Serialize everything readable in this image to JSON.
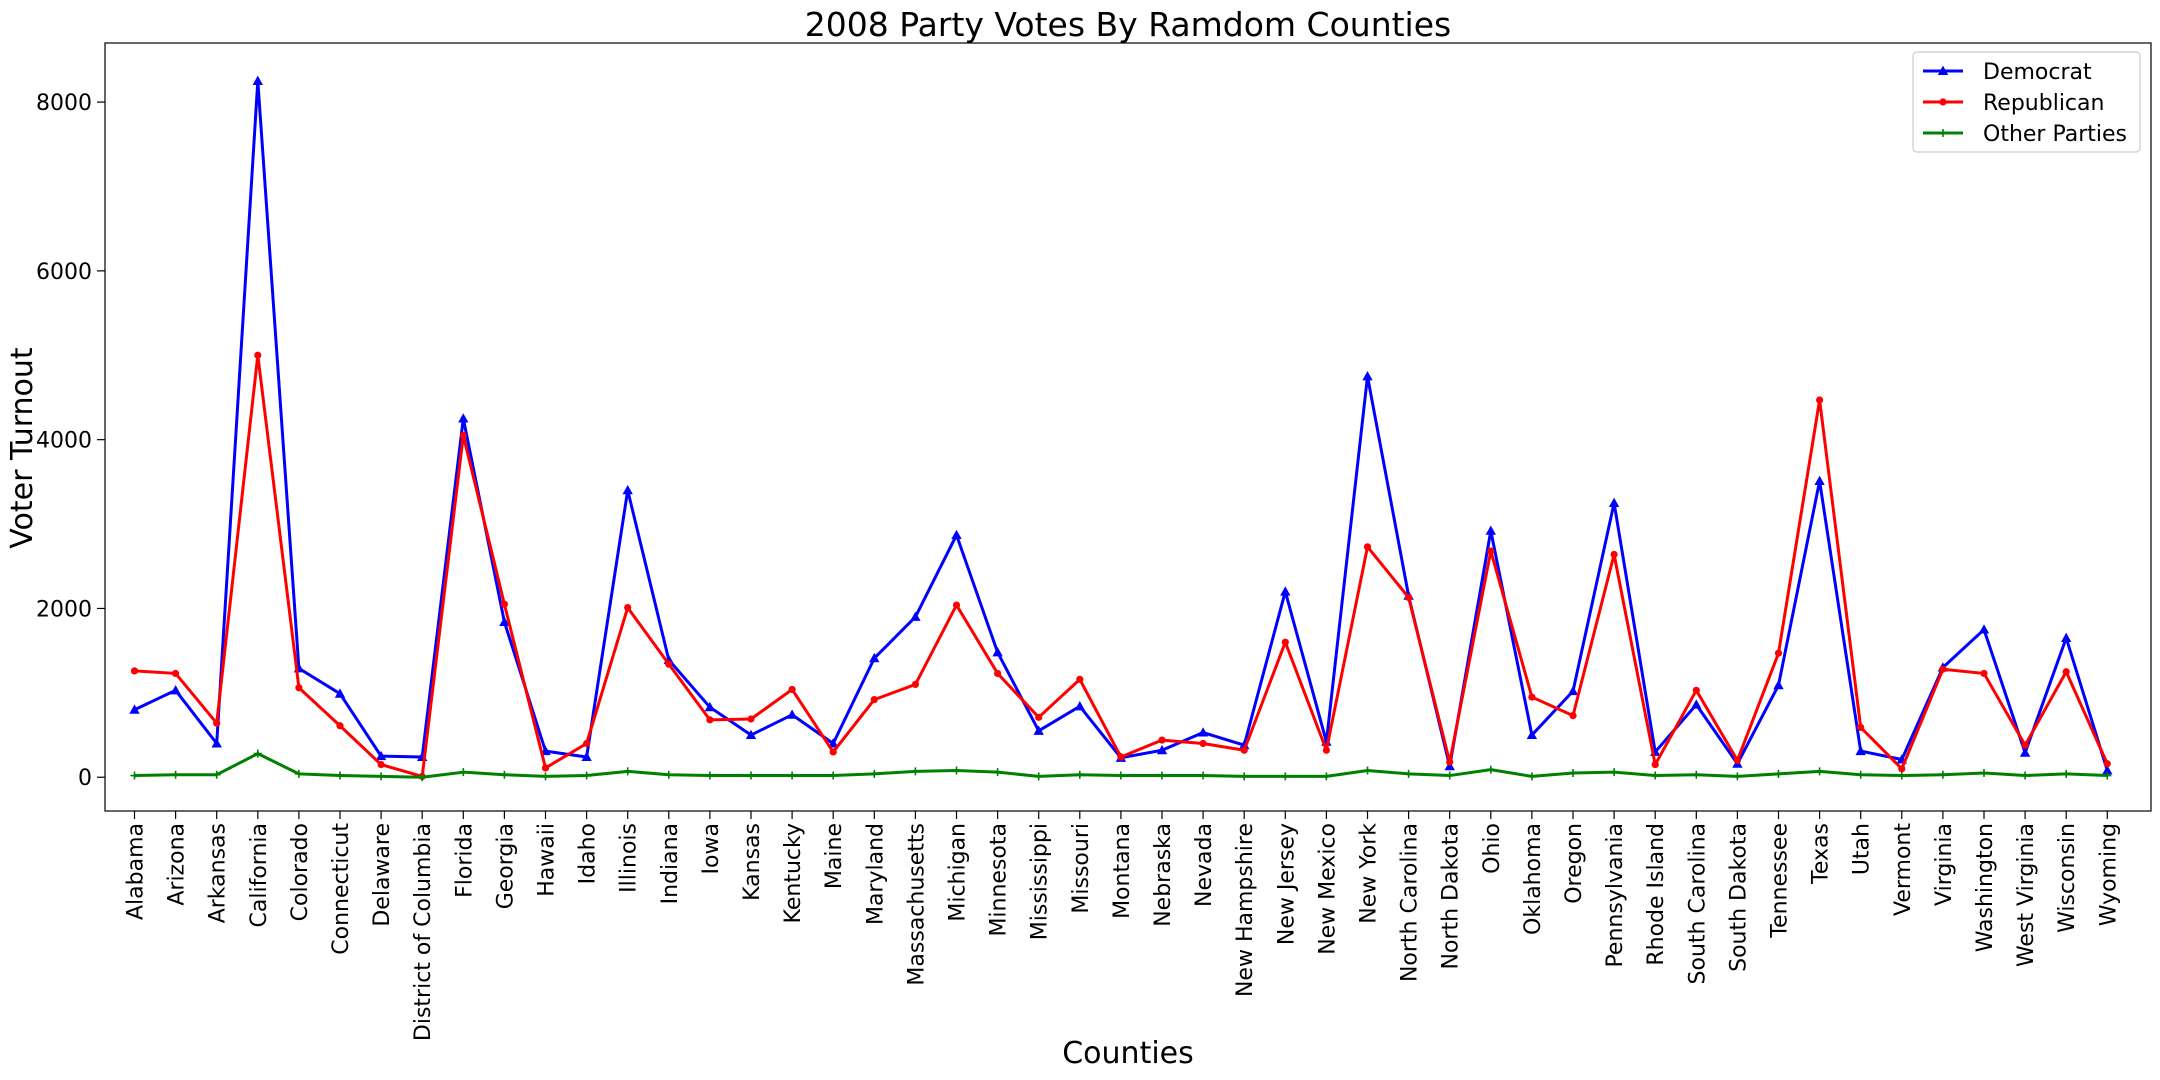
{
  "chart_data": {
    "type": "line",
    "title": "2008 Party Votes By Ramdom Counties",
    "xlabel": "Counties",
    "ylabel": "Voter Turnout",
    "ylim": [
      -400,
      8700
    ],
    "yticks": [
      0,
      2000,
      4000,
      6000,
      8000
    ],
    "grid": false,
    "legend_position": "top-right",
    "categories": [
      "Alabama",
      "Arizona",
      "Arkansas",
      "California",
      "Colorado",
      "Connecticut",
      "Delaware",
      "District of Columbia",
      "Florida",
      "Georgia",
      "Hawaii",
      "Idaho",
      "Illinois",
      "Indiana",
      "Iowa",
      "Kansas",
      "Kentucky",
      "Maine",
      "Maryland",
      "Massachusetts",
      "Michigan",
      "Minnesota",
      "Mississippi",
      "Missouri",
      "Montana",
      "Nebraska",
      "Nevada",
      "New Hampshire",
      "New Jersey",
      "New Mexico",
      "New York",
      "North Carolina",
      "North Dakota",
      "Ohio",
      "Oklahoma",
      "Oregon",
      "Pennsylvania",
      "Rhode Island",
      "South Carolina",
      "South Dakota",
      "Tennessee",
      "Texas",
      "Utah",
      "Vermont",
      "Virginia",
      "Washington",
      "West Virginia",
      "Wisconsin",
      "Wyoming"
    ],
    "series": [
      {
        "name": "Democrat",
        "color": "#0000ff",
        "marker": "triangle",
        "values": [
          800,
          1030,
          400,
          8250,
          1290,
          990,
          250,
          240,
          4250,
          1840,
          310,
          240,
          3400,
          1390,
          830,
          500,
          740,
          400,
          1410,
          1900,
          2870,
          1480,
          550,
          840,
          230,
          320,
          530,
          380,
          2200,
          420,
          4750,
          2150,
          130,
          2920,
          500,
          1020,
          3250,
          300,
          860,
          160,
          1090,
          3510,
          310,
          210,
          1300,
          1750,
          290,
          1650,
          80
        ]
      },
      {
        "name": "Republican",
        "color": "#ff0000",
        "marker": "circle",
        "values": [
          1260,
          1230,
          640,
          5000,
          1060,
          610,
          150,
          10,
          4050,
          2050,
          110,
          400,
          2010,
          1340,
          680,
          690,
          1040,
          300,
          920,
          1100,
          2040,
          1230,
          710,
          1160,
          240,
          440,
          400,
          320,
          1600,
          320,
          2730,
          2130,
          180,
          2680,
          950,
          730,
          2640,
          150,
          1030,
          200,
          1470,
          4470,
          590,
          100,
          1280,
          1230,
          380,
          1250,
          160
        ]
      },
      {
        "name": "Other Parties",
        "color": "#008000",
        "marker": "plus",
        "values": [
          20,
          30,
          30,
          280,
          40,
          20,
          10,
          0,
          60,
          30,
          10,
          20,
          70,
          30,
          20,
          20,
          20,
          20,
          40,
          70,
          80,
          60,
          10,
          30,
          20,
          20,
          20,
          10,
          10,
          10,
          80,
          40,
          20,
          90,
          10,
          50,
          60,
          20,
          30,
          10,
          40,
          70,
          30,
          20,
          30,
          50,
          20,
          40,
          20
        ]
      }
    ]
  }
}
